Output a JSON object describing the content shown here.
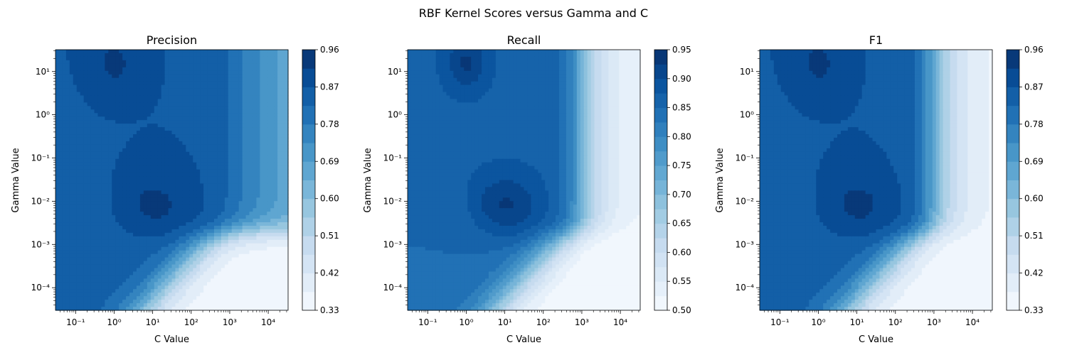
{
  "figure": {
    "suptitle": "RBF Kernel Scores versus Gamma and C"
  },
  "chart_data": [
    {
      "type": "heatmap",
      "subtype": "filled-contour",
      "title": "Precision",
      "xlabel": "C Value",
      "ylabel": "Gamma Value",
      "xscale": "log",
      "yscale": "log",
      "xlim": [
        0.03,
        32768
      ],
      "ylim": [
        3e-05,
        32
      ],
      "xticks": [
        {
          "value": 0.1,
          "label": "10⁻¹"
        },
        {
          "value": 1,
          "label": "10⁰"
        },
        {
          "value": 10,
          "label": "10¹"
        },
        {
          "value": 100,
          "label": "10²"
        },
        {
          "value": 1000,
          "label": "10³"
        },
        {
          "value": 10000,
          "label": "10⁴"
        }
      ],
      "yticks": [
        {
          "value": 0.0001,
          "label": "10⁻⁴"
        },
        {
          "value": 0.001,
          "label": "10⁻³"
        },
        {
          "value": 0.01,
          "label": "10⁻²"
        },
        {
          "value": 0.1,
          "label": "10⁻¹"
        },
        {
          "value": 1,
          "label": "10⁰"
        },
        {
          "value": 10,
          "label": "10¹"
        }
      ],
      "colormap": "Blues",
      "colorbar": {
        "min": 0.33,
        "max": 0.96,
        "ticks": [
          "0.33",
          "0.42",
          "0.51",
          "0.60",
          "0.69",
          "0.78",
          "0.87",
          "0.96"
        ]
      },
      "grid": false,
      "regions_note_values": [
        {
          "C": 0.03,
          "gamma": 32,
          "score": 0.89
        },
        {
          "C": 1,
          "gamma": 10,
          "score": 0.93
        },
        {
          "C": 10,
          "gamma": 0.01,
          "score": 0.93
        },
        {
          "C": 1000,
          "gamma": 0.01,
          "score": 0.78
        },
        {
          "C": 10000,
          "gamma": 0.0001,
          "score": 0.38
        },
        {
          "C": 0.1,
          "gamma": 0.0001,
          "score": 0.85
        }
      ]
    },
    {
      "type": "heatmap",
      "subtype": "filled-contour",
      "title": "Recall",
      "xlabel": "C Value",
      "ylabel": "Gamma Value",
      "xscale": "log",
      "yscale": "log",
      "xlim": [
        0.03,
        32768
      ],
      "ylim": [
        3e-05,
        32
      ],
      "xticks": [
        {
          "value": 0.1,
          "label": "10⁻¹"
        },
        {
          "value": 1,
          "label": "10⁰"
        },
        {
          "value": 10,
          "label": "10¹"
        },
        {
          "value": 100,
          "label": "10²"
        },
        {
          "value": 1000,
          "label": "10³"
        },
        {
          "value": 10000,
          "label": "10⁴"
        }
      ],
      "yticks": [
        {
          "value": 0.0001,
          "label": "10⁻⁴"
        },
        {
          "value": 0.001,
          "label": "10⁻³"
        },
        {
          "value": 0.01,
          "label": "10⁻²"
        },
        {
          "value": 0.1,
          "label": "10⁻¹"
        },
        {
          "value": 1,
          "label": "10⁰"
        },
        {
          "value": 10,
          "label": "10¹"
        }
      ],
      "colormap": "Blues",
      "colorbar": {
        "min": 0.5,
        "max": 0.95,
        "ticks": [
          "0.50",
          "0.55",
          "0.60",
          "0.65",
          "0.70",
          "0.75",
          "0.80",
          "0.85",
          "0.90",
          "0.95"
        ]
      },
      "grid": false,
      "regions_note_values": [
        {
          "C": 1,
          "gamma": 1,
          "score": 0.93
        },
        {
          "C": 10,
          "gamma": 0.01,
          "score": 0.93
        },
        {
          "C": 1000,
          "gamma": 0.01,
          "score": 0.75
        },
        {
          "C": 10000,
          "gamma": 0.0001,
          "score": 0.5
        },
        {
          "C": 0.1,
          "gamma": 0.0001,
          "score": 0.87
        }
      ]
    },
    {
      "type": "heatmap",
      "subtype": "filled-contour",
      "title": "F1",
      "xlabel": "C Value",
      "ylabel": "Gamma Value",
      "xscale": "log",
      "yscale": "log",
      "xlim": [
        0.03,
        32768
      ],
      "ylim": [
        3e-05,
        32
      ],
      "xticks": [
        {
          "value": 0.1,
          "label": "10⁻¹"
        },
        {
          "value": 1,
          "label": "10⁰"
        },
        {
          "value": 10,
          "label": "10¹"
        },
        {
          "value": 100,
          "label": "10²"
        },
        {
          "value": 1000,
          "label": "10³"
        },
        {
          "value": 10000,
          "label": "10⁴"
        }
      ],
      "yticks": [
        {
          "value": 0.0001,
          "label": "10⁻⁴"
        },
        {
          "value": 0.001,
          "label": "10⁻³"
        },
        {
          "value": 0.01,
          "label": "10⁻²"
        },
        {
          "value": 0.1,
          "label": "10⁻¹"
        },
        {
          "value": 1,
          "label": "10⁰"
        },
        {
          "value": 10,
          "label": "10¹"
        }
      ],
      "colormap": "Blues",
      "colorbar": {
        "min": 0.33,
        "max": 0.96,
        "ticks": [
          "0.33",
          "0.42",
          "0.51",
          "0.60",
          "0.69",
          "0.78",
          "0.87",
          "0.96"
        ]
      },
      "grid": false,
      "regions_note_values": [
        {
          "C": 1,
          "gamma": 10,
          "score": 0.92
        },
        {
          "C": 10,
          "gamma": 0.01,
          "score": 0.93
        },
        {
          "C": 1000,
          "gamma": 0.01,
          "score": 0.65
        },
        {
          "C": 10000,
          "gamma": 0.0001,
          "score": 0.35
        },
        {
          "C": 0.1,
          "gamma": 0.0001,
          "score": 0.86
        }
      ]
    }
  ]
}
